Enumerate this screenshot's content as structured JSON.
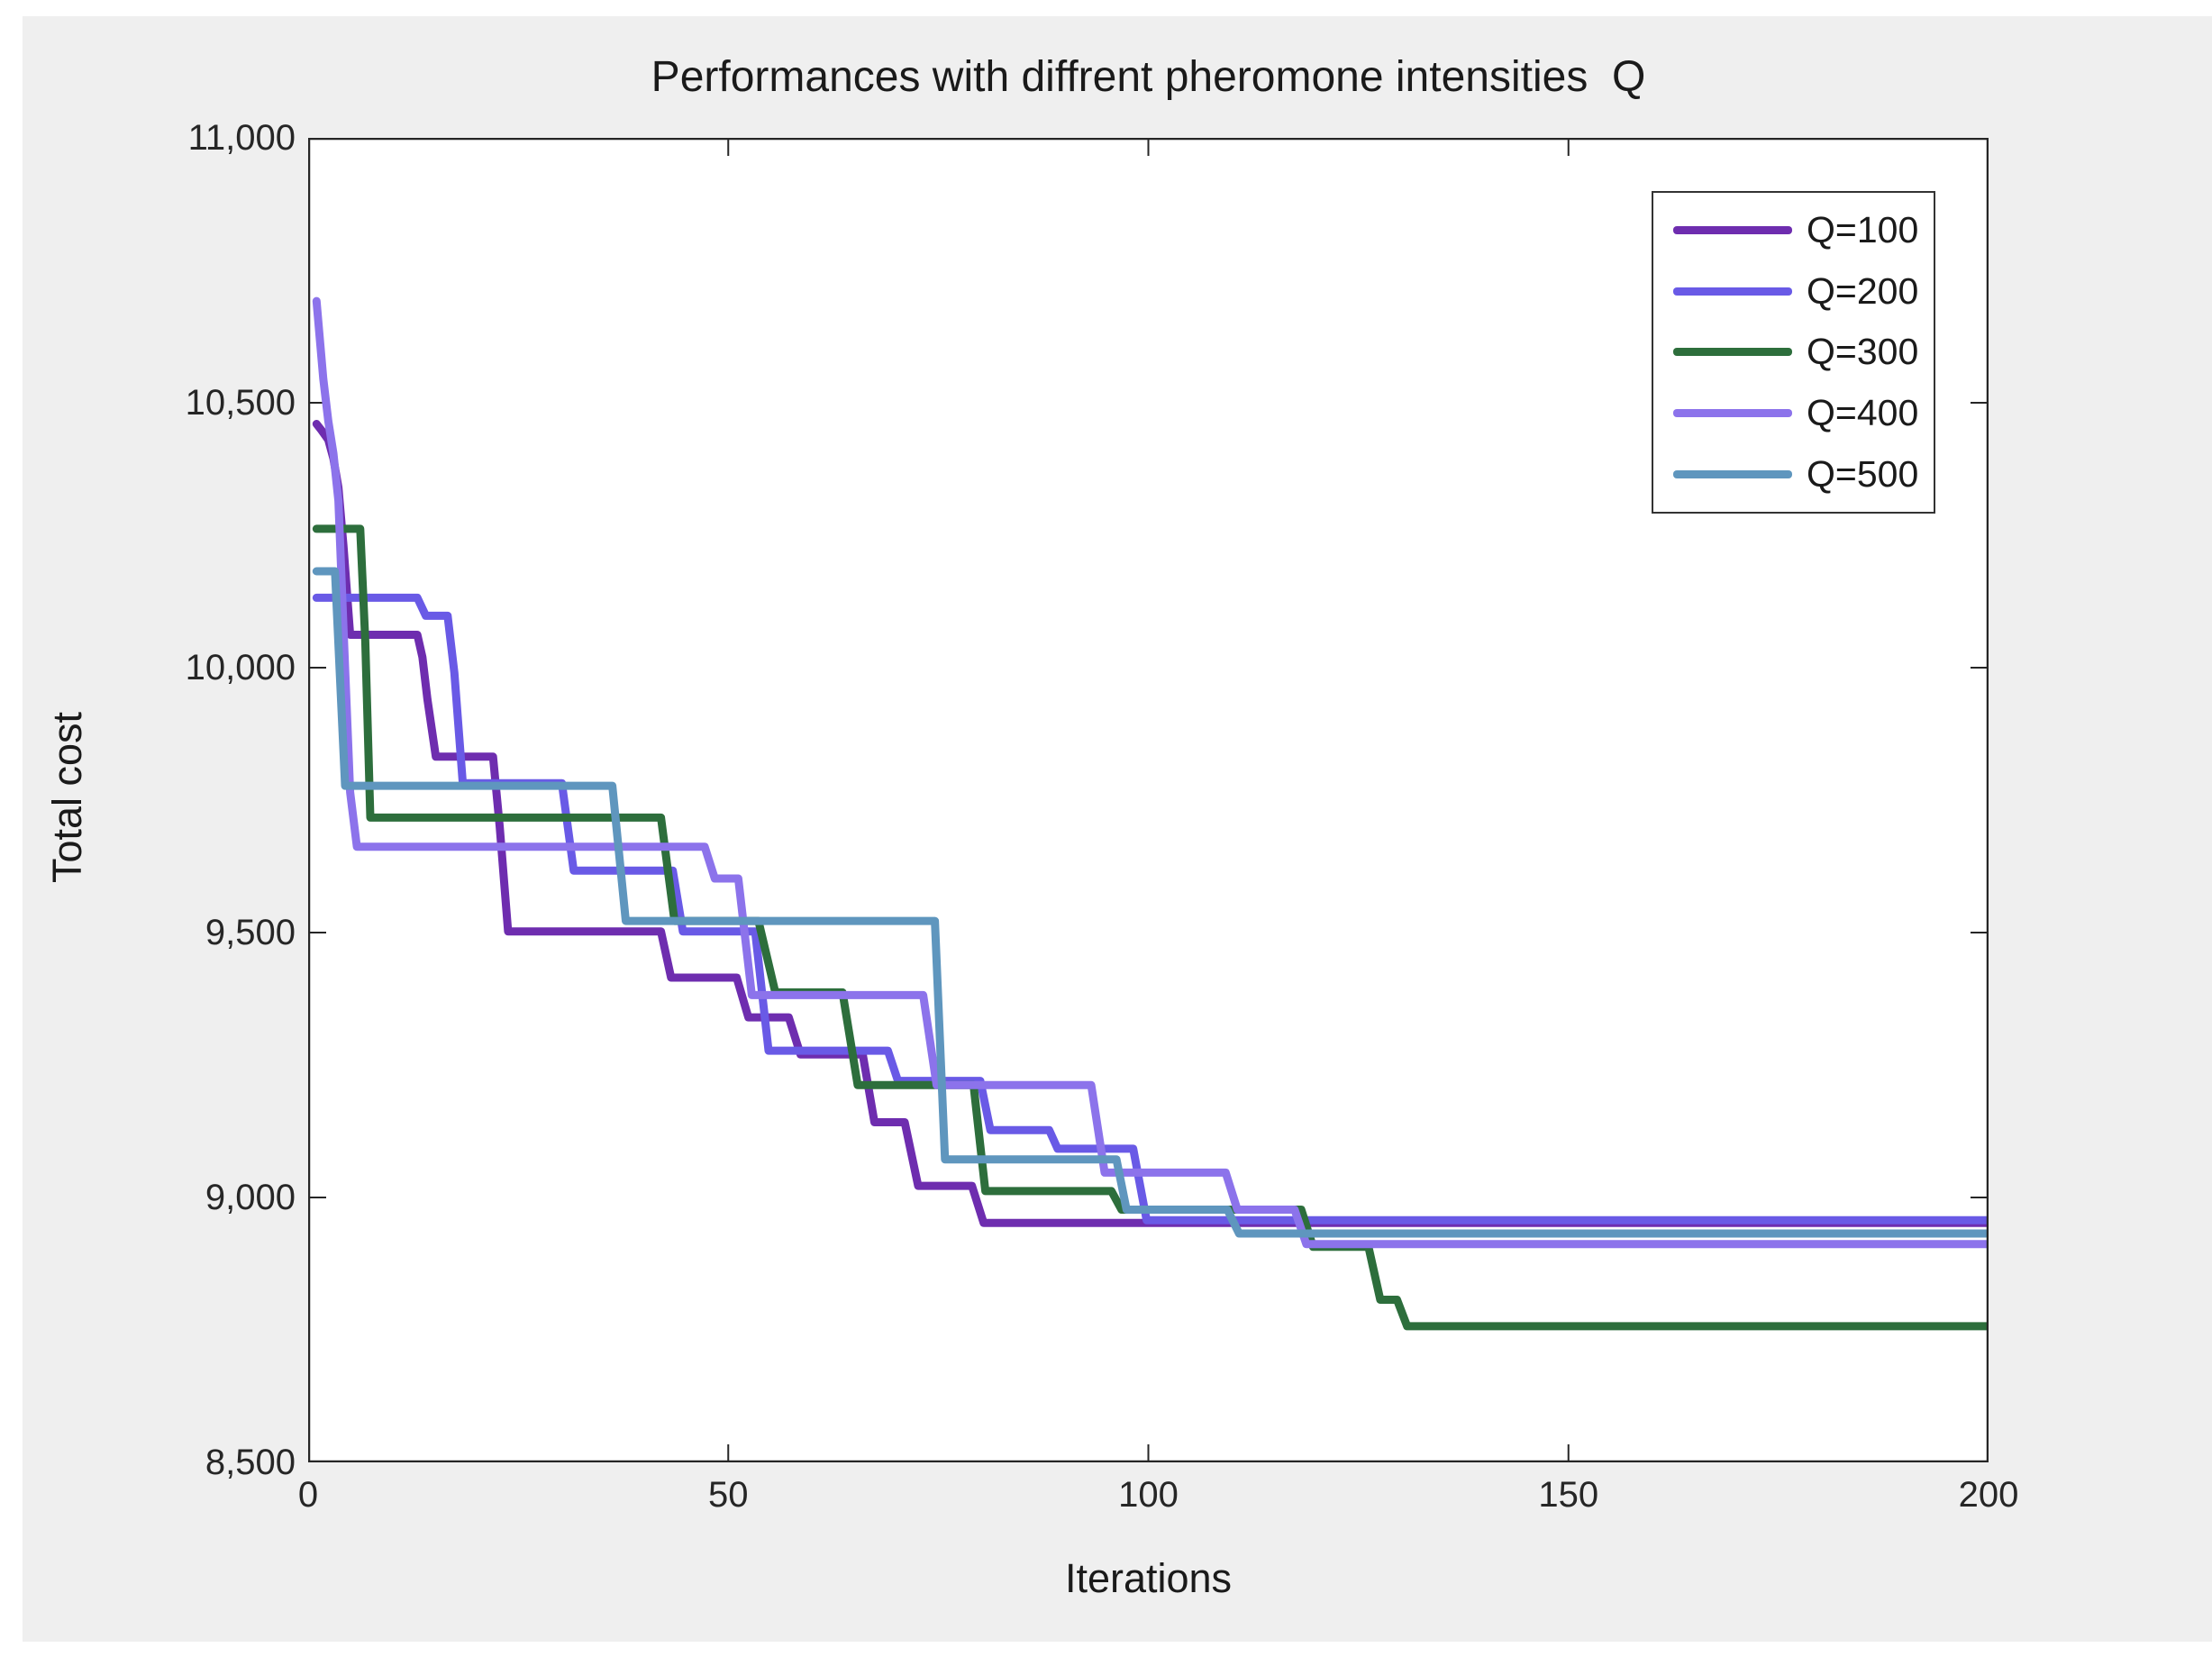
{
  "colors": {
    "figure_bg": "#EFEFEF",
    "plot_bg": "#FFFFFF",
    "axis": "#262626",
    "text": "#1A1A1A"
  },
  "chart_data": {
    "type": "line",
    "title": "Performances with diffrent pheromone intensities  Q",
    "xlabel": "Iterations",
    "ylabel": "Total cost",
    "xlim": [
      0,
      200
    ],
    "ylim": [
      8500,
      11000
    ],
    "grid": false,
    "legend_position": "top-right",
    "x_ticks": {
      "values": [
        0,
        50,
        100,
        150,
        200
      ],
      "labels": [
        "0",
        "50",
        "100",
        "150",
        "200"
      ]
    },
    "y_ticks": {
      "values": [
        8500,
        9000,
        9500,
        10000,
        10500,
        11000
      ],
      "labels": [
        "8,500",
        "9,000",
        "9,500",
        "10,000",
        "10,500",
        "11,000"
      ]
    },
    "series": [
      {
        "name": "Q=100",
        "color": "#6E2DAF",
        "points": [
          [
            1,
            10460
          ],
          [
            1.6,
            10448
          ],
          [
            2.4,
            10430
          ],
          [
            3,
            10395
          ],
          [
            3.6,
            10340
          ],
          [
            4.2,
            10230
          ],
          [
            5,
            10062
          ],
          [
            13,
            10062
          ],
          [
            13.6,
            10020
          ],
          [
            14.2,
            9940
          ],
          [
            15.2,
            9832
          ],
          [
            22,
            9832
          ],
          [
            22.8,
            9700
          ],
          [
            23.8,
            9502
          ],
          [
            42,
            9502
          ],
          [
            43.2,
            9415
          ],
          [
            51,
            9415
          ],
          [
            52.4,
            9340
          ],
          [
            57.2,
            9340
          ],
          [
            58.6,
            9270
          ],
          [
            66,
            9270
          ],
          [
            67.4,
            9142
          ],
          [
            71,
            9142
          ],
          [
            72.6,
            9022
          ],
          [
            79,
            9022
          ],
          [
            80.4,
            8952
          ],
          [
            200,
            8952
          ]
        ]
      },
      {
        "name": "Q=200",
        "color": "#695AE6",
        "points": [
          [
            1,
            10132
          ],
          [
            13,
            10132
          ],
          [
            14,
            10098
          ],
          [
            16.6,
            10098
          ],
          [
            17.4,
            9990
          ],
          [
            18.4,
            9782
          ],
          [
            30.2,
            9782
          ],
          [
            31.6,
            9617
          ],
          [
            43.4,
            9617
          ],
          [
            44.6,
            9502
          ],
          [
            53.2,
            9502
          ],
          [
            54.8,
            9277
          ],
          [
            69,
            9277
          ],
          [
            70.2,
            9220
          ],
          [
            80,
            9220
          ],
          [
            81.2,
            9127
          ],
          [
            88.2,
            9127
          ],
          [
            89.2,
            9092
          ],
          [
            98.2,
            9092
          ],
          [
            99.8,
            8957
          ],
          [
            200,
            8957
          ]
        ]
      },
      {
        "name": "Q=300",
        "color": "#2D6E3C",
        "points": [
          [
            1,
            10262
          ],
          [
            6.2,
            10262
          ],
          [
            6.8,
            10050
          ],
          [
            7.4,
            9717
          ],
          [
            42,
            9717
          ],
          [
            43.6,
            9522
          ],
          [
            53.6,
            9522
          ],
          [
            55.6,
            9387
          ],
          [
            63.6,
            9387
          ],
          [
            65.4,
            9212
          ],
          [
            79.2,
            9212
          ],
          [
            80.6,
            9012
          ],
          [
            95.6,
            9012
          ],
          [
            96.8,
            8977
          ],
          [
            118.2,
            8977
          ],
          [
            119.6,
            8907
          ],
          [
            126.2,
            8907
          ],
          [
            127.6,
            8807
          ],
          [
            129.6,
            8807
          ],
          [
            130.8,
            8757
          ],
          [
            200,
            8757
          ]
        ]
      },
      {
        "name": "Q=400",
        "color": "#8C73EB",
        "points": [
          [
            1,
            10692
          ],
          [
            1.8,
            10545
          ],
          [
            2.4,
            10465
          ],
          [
            3,
            10405
          ],
          [
            3.6,
            10315
          ],
          [
            4.2,
            10075
          ],
          [
            5,
            9765
          ],
          [
            5.8,
            9662
          ],
          [
            47.2,
            9662
          ],
          [
            48.4,
            9602
          ],
          [
            51.2,
            9602
          ],
          [
            52.8,
            9382
          ],
          [
            73.2,
            9382
          ],
          [
            74.8,
            9212
          ],
          [
            93.2,
            9212
          ],
          [
            94.8,
            9047
          ],
          [
            109.2,
            9047
          ],
          [
            110.6,
            8977
          ],
          [
            117.4,
            8977
          ],
          [
            118.8,
            8912
          ],
          [
            200,
            8912
          ]
        ]
      },
      {
        "name": "Q=500",
        "color": "#5F96BE",
        "points": [
          [
            1,
            10182
          ],
          [
            3.2,
            10182
          ],
          [
            4.4,
            9777
          ],
          [
            36.2,
            9777
          ],
          [
            37.8,
            9522
          ],
          [
            74.6,
            9522
          ],
          [
            75.8,
            9072
          ],
          [
            96.2,
            9072
          ],
          [
            97.4,
            8977
          ],
          [
            109.4,
            8977
          ],
          [
            110.8,
            8932
          ],
          [
            200,
            8932
          ]
        ]
      }
    ]
  }
}
